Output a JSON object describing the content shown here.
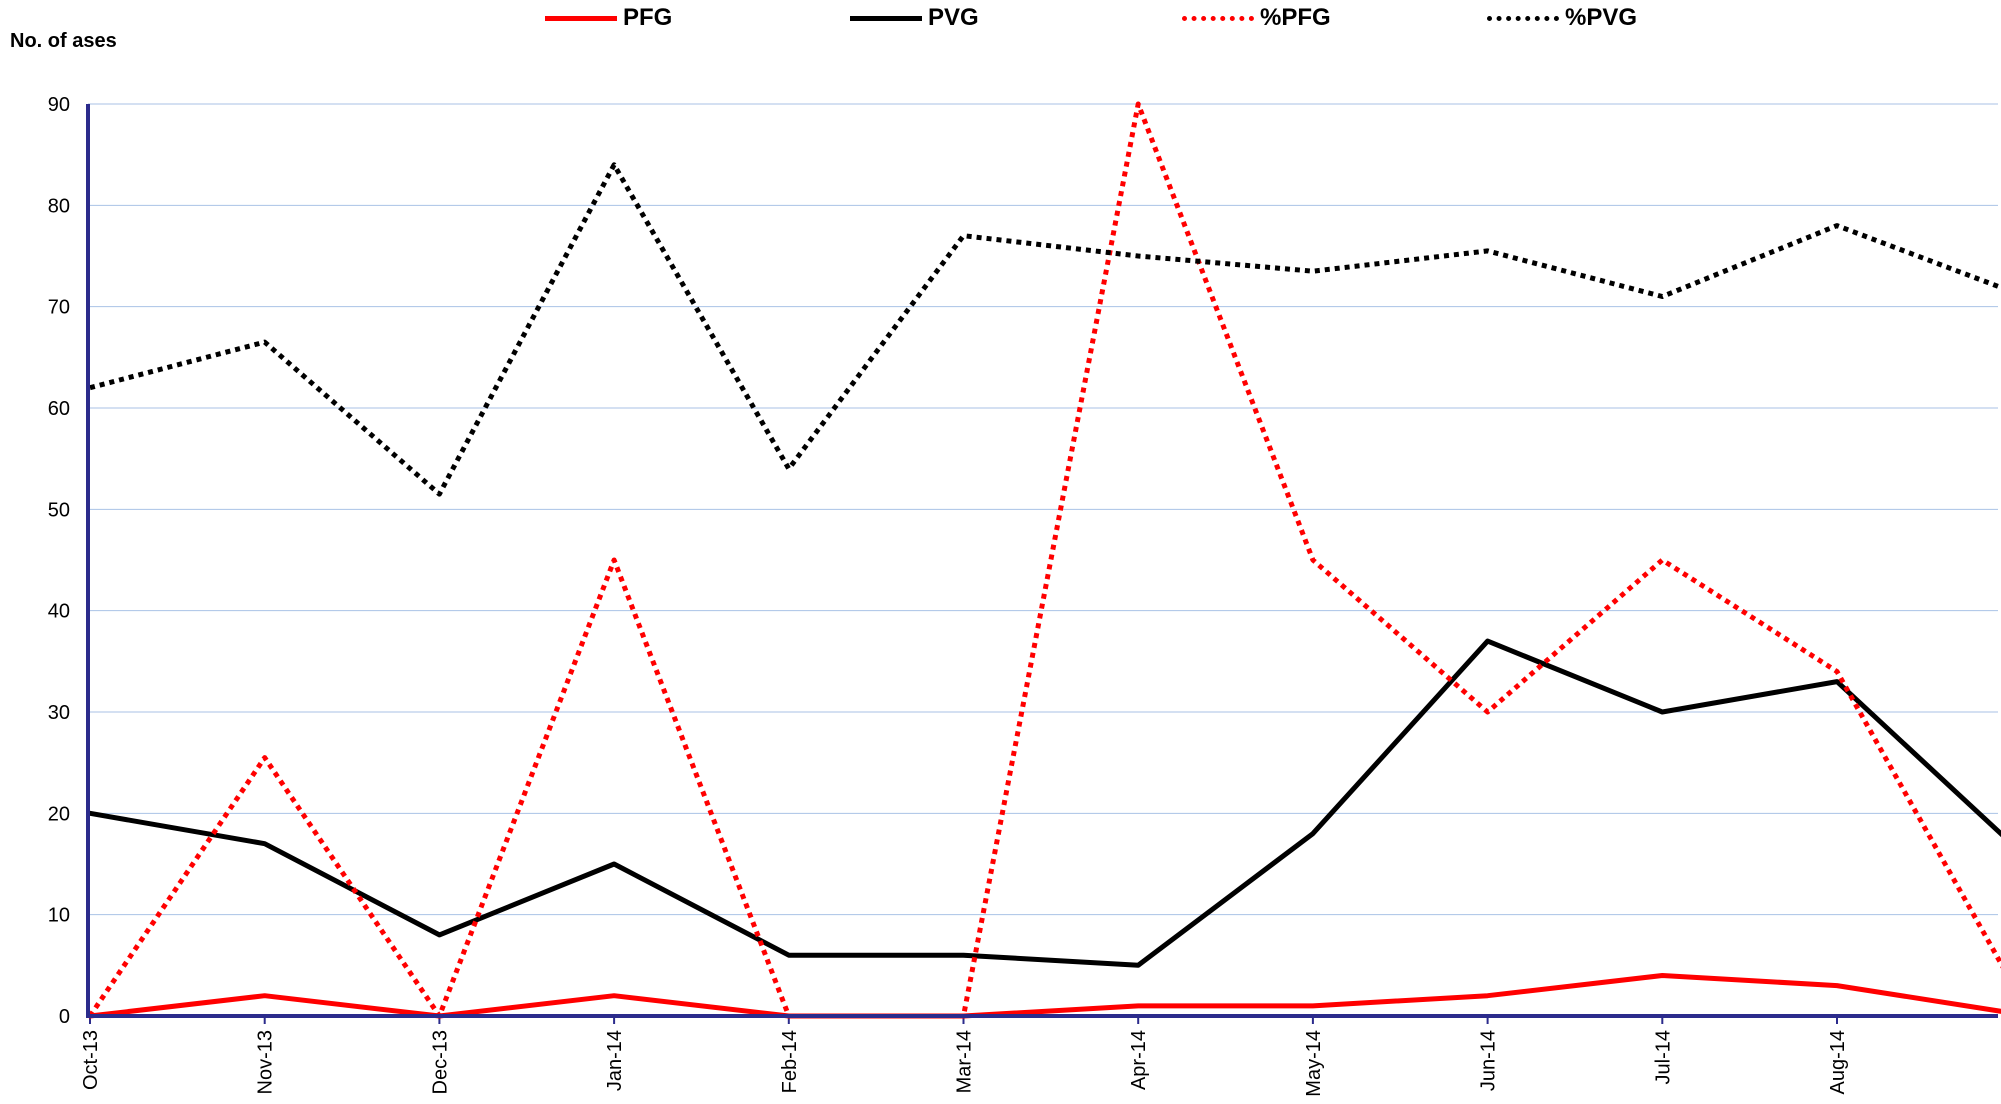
{
  "chart_data": {
    "type": "line",
    "title": "",
    "ylabel": "No. of ases",
    "xlabel": "",
    "ylim": [
      0,
      90
    ],
    "yticks": [
      0,
      10,
      20,
      30,
      40,
      50,
      60,
      70,
      80,
      90
    ],
    "grid": true,
    "legend_position": "top",
    "categories": [
      "Oct-13",
      "Nov-13",
      "Dec-13",
      "Jan-14",
      "Feb-14",
      "Mar-14",
      "Apr-14",
      "May-14",
      "Jun-14",
      "Jul-14",
      "Aug-14",
      ""
    ],
    "series": [
      {
        "name": "PFG",
        "color": "#ff0000",
        "style": "solid",
        "values": [
          0,
          2,
          0,
          2,
          0,
          0,
          1,
          1,
          2,
          4,
          3,
          0.3
        ]
      },
      {
        "name": "PVG",
        "color": "#000000",
        "style": "solid",
        "values": [
          20,
          17,
          8,
          15,
          6,
          6,
          5,
          18,
          37,
          30,
          33,
          17
        ]
      },
      {
        "name": "%PFG",
        "color": "#ff0000",
        "style": "dotted",
        "values": [
          0,
          25.5,
          0,
          45,
          0,
          0,
          90,
          45,
          30,
          45,
          34,
          3.3
        ]
      },
      {
        "name": "%PVG",
        "color": "#000000",
        "style": "dotted",
        "values": [
          62,
          66.5,
          51.5,
          84,
          54,
          77,
          75,
          73.5,
          75.5,
          71,
          78,
          71.5
        ]
      }
    ],
    "colors": {
      "grid": "#a9c2e6",
      "axis": "#2b2b8c"
    }
  }
}
